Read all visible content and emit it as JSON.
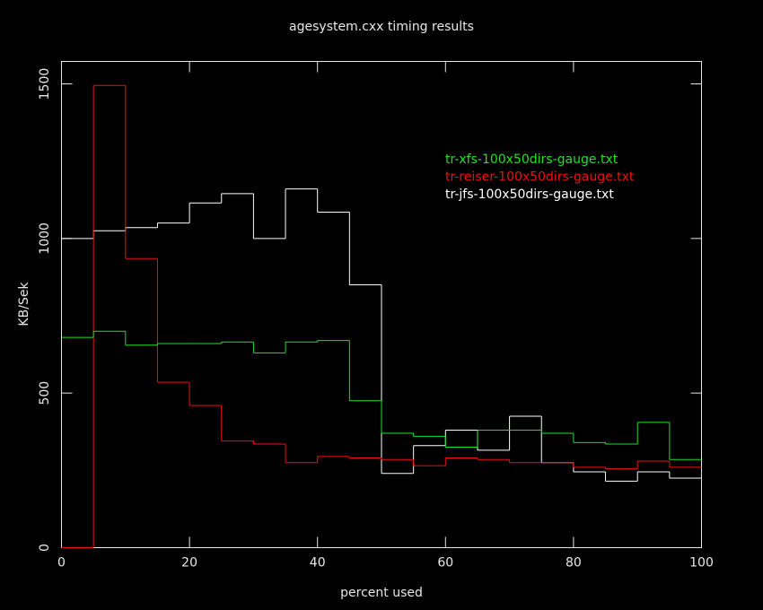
{
  "chart_data": {
    "type": "step-histogram",
    "title": "agesystem.cxx timing results",
    "x_label": "percent used",
    "y_label": "KB/Sek",
    "bins": [
      0,
      5,
      10,
      15,
      20,
      25,
      30,
      35,
      40,
      45,
      50,
      55,
      60,
      65,
      70,
      75,
      80,
      85,
      90,
      95,
      100
    ],
    "series": [
      {
        "name": "tr-xfs-100x50dirs-gauge.txt",
        "color": "#22e022",
        "values": [
          680,
          700,
          655,
          660,
          660,
          665,
          630,
          665,
          670,
          475,
          370,
          360,
          325,
          380,
          380,
          370,
          340,
          335,
          405,
          285
        ]
      },
      {
        "name": "tr-reiser-100x50dirs-gauge.txt",
        "color": "#ee1111",
        "values": [
          0,
          1495,
          935,
          535,
          460,
          345,
          335,
          275,
          295,
          290,
          285,
          265,
          290,
          285,
          275,
          275,
          260,
          255,
          280,
          260
        ]
      },
      {
        "name": "tr-jfs-100x50dirs-gauge.txt",
        "color": "#ffffff",
        "values": [
          1000,
          1025,
          1035,
          1050,
          1115,
          1145,
          1000,
          1160,
          1085,
          850,
          240,
          330,
          380,
          315,
          425,
          275,
          245,
          215,
          245,
          225
        ]
      }
    ],
    "xlim": [
      0,
      100
    ],
    "xticks": [
      0,
      20,
      40,
      60,
      80,
      100
    ],
    "ylim": [
      0,
      1500
    ],
    "yticks": [
      0,
      500,
      1000,
      1500
    ],
    "legend": "upper-right"
  }
}
